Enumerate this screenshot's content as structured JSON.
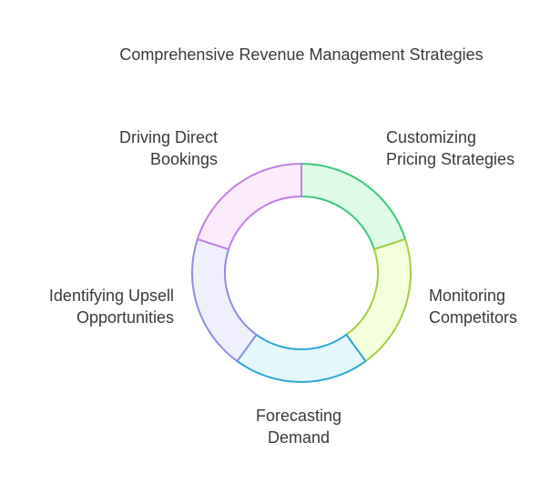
{
  "title": "Comprehensive Revenue Management Strategies",
  "nodes": [
    {
      "lines": [
        "Customizing",
        "Pricing Strategies"
      ]
    },
    {
      "lines": [
        "Monitoring",
        "Competitors"
      ]
    },
    {
      "lines": [
        "Forecasting",
        "Demand"
      ]
    },
    {
      "lines": [
        "Identifying Upsell",
        "Opportunities"
      ]
    },
    {
      "lines": [
        "Driving Direct",
        "Bookings"
      ]
    }
  ]
}
